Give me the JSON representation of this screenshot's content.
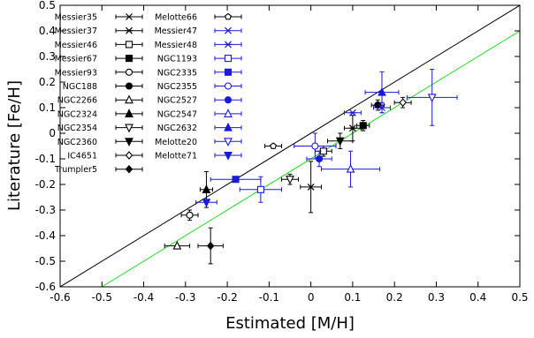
{
  "chart_data": {
    "type": "scatter",
    "xlabel": "Estimated [M/H]",
    "ylabel": "Literature [Fe/H]",
    "xlim": [
      -0.6,
      0.5
    ],
    "ylim": [
      -0.6,
      0.5
    ],
    "xticks": [
      "-0.6",
      "-0.5",
      "-0.4",
      "-0.3",
      "-0.2",
      "-0.1",
      "0",
      "0.1",
      "0.2",
      "0.3",
      "0.4",
      "0.5"
    ],
    "yticks": [
      "-0.6",
      "-0.5",
      "-0.4",
      "-0.3",
      "-0.2",
      "-0.1",
      "0",
      "0.1",
      "0.2",
      "0.3",
      "0.4",
      "0.5"
    ],
    "grid": false,
    "reference_lines": [
      {
        "kind": "one-to-one",
        "color": "#000000",
        "x1": -0.6,
        "y1": -0.6,
        "x2": 0.5,
        "y2": 0.5
      },
      {
        "kind": "fit",
        "color": "#22dd22",
        "x1": -0.5,
        "y1": -0.6,
        "x2": 0.5,
        "y2": 0.4
      }
    ],
    "series": [
      {
        "name": "Messier35",
        "marker": "x",
        "color": "#000000",
        "x": 0.0,
        "y": -0.21,
        "xerr": 0.025,
        "yerr": 0.1
      },
      {
        "name": "Messier37",
        "marker": "star",
        "color": "#000000",
        "x": 0.1,
        "y": 0.02,
        "xerr": 0.02,
        "yerr": 0.05
      },
      {
        "name": "Messier46",
        "marker": "square",
        "color": "#000000",
        "x": 0.03,
        "y": -0.07,
        "xerr": 0.02,
        "yerr": 0.02
      },
      {
        "name": "Messier67",
        "marker": "square-f",
        "color": "#000000",
        "x": 0.125,
        "y": 0.03,
        "xerr": 0.015,
        "yerr": 0.02
      },
      {
        "name": "Messier93",
        "marker": "circle",
        "color": "#000000",
        "x": -0.29,
        "y": -0.32,
        "xerr": 0.02,
        "yerr": 0.02
      },
      {
        "name": "NGC188",
        "marker": "circle-f",
        "color": "#000000",
        "x": 0.16,
        "y": 0.11,
        "xerr": 0.015,
        "yerr": 0.02
      },
      {
        "name": "NGC2266",
        "marker": "triangle",
        "color": "#000000",
        "x": -0.32,
        "y": -0.44,
        "xerr": 0.03,
        "yerr": 0.0
      },
      {
        "name": "NGC2324",
        "marker": "triangle-f",
        "color": "#000000",
        "x": -0.25,
        "y": -0.22,
        "xerr": 0.015,
        "yerr": 0.07
      },
      {
        "name": "NGC2354",
        "marker": "tri-down",
        "color": "#000000",
        "x": -0.05,
        "y": -0.18,
        "xerr": 0.02,
        "yerr": 0.02
      },
      {
        "name": "NGC2360",
        "marker": "tri-down-f",
        "color": "#000000",
        "x": 0.07,
        "y": -0.03,
        "xerr": 0.03,
        "yerr": 0.03
      },
      {
        "name": "IC4651",
        "marker": "diamond",
        "color": "#000000",
        "x": 0.22,
        "y": 0.12,
        "xerr": 0.02,
        "yerr": 0.02
      },
      {
        "name": "Trumpler5",
        "marker": "diamond-f",
        "color": "#000000",
        "x": -0.24,
        "y": -0.44,
        "xerr": 0.03,
        "yerr": 0.07
      },
      {
        "name": "Melotte66",
        "marker": "pentagon",
        "color": "#000000",
        "x": -0.09,
        "y": -0.05,
        "xerr": 0.02,
        "yerr": 0.0
      },
      {
        "name": "Messier47",
        "marker": "x",
        "color": "#1a1adb",
        "x": 0.17,
        "y": 0.1,
        "xerr": 0.02,
        "yerr": 0.02
      },
      {
        "name": "Messier48",
        "marker": "star",
        "color": "#1a1adb",
        "x": 0.1,
        "y": 0.08,
        "xerr": 0.02,
        "yerr": 0.0
      },
      {
        "name": "NGC1193",
        "marker": "square",
        "color": "#1a1adb",
        "x": -0.12,
        "y": -0.22,
        "xerr": 0.05,
        "yerr": 0.05
      },
      {
        "name": "NGC2335",
        "marker": "square-f",
        "color": "#1a1adb",
        "x": -0.18,
        "y": -0.18,
        "xerr": 0.06,
        "yerr": 0.0
      },
      {
        "name": "NGC2355",
        "marker": "circle",
        "color": "#1a1adb",
        "x": 0.01,
        "y": -0.05,
        "xerr": 0.05,
        "yerr": 0.05
      },
      {
        "name": "NGC2527",
        "marker": "circle-f",
        "color": "#1a1adb",
        "x": 0.02,
        "y": -0.1,
        "xerr": 0.03,
        "yerr": 0.03
      },
      {
        "name": "NGC2547",
        "marker": "triangle",
        "color": "#1a1adb",
        "x": 0.095,
        "y": -0.14,
        "xerr": 0.07,
        "yerr": 0.07
      },
      {
        "name": "NGC2632",
        "marker": "triangle-f",
        "color": "#1a1adb",
        "x": 0.17,
        "y": 0.16,
        "xerr": 0.04,
        "yerr": 0.08
      },
      {
        "name": "Melotte20",
        "marker": "tri-down",
        "color": "#1a1adb",
        "x": 0.29,
        "y": 0.14,
        "xerr": 0.06,
        "yerr": 0.11
      },
      {
        "name": "Melotte71",
        "marker": "tri-down-f",
        "color": "#1a1adb",
        "x": -0.25,
        "y": -0.27,
        "xerr": 0.025,
        "yerr": 0.0
      }
    ],
    "legend": {
      "placement": "top-left",
      "columns": [
        [
          "Messier35",
          "Messier37",
          "Messier46",
          "Messier67",
          "Messier93",
          "NGC188",
          "NGC2266",
          "NGC2324",
          "NGC2354",
          "NGC2360",
          "IC4651",
          "Trumpler5"
        ],
        [
          "Melotte66",
          "Messier47",
          "Messier48",
          "NGC1193",
          "NGC2335",
          "NGC2355",
          "NGC2527",
          "NGC2547",
          "NGC2632",
          "Melotte20",
          "Melotte71"
        ]
      ]
    }
  }
}
